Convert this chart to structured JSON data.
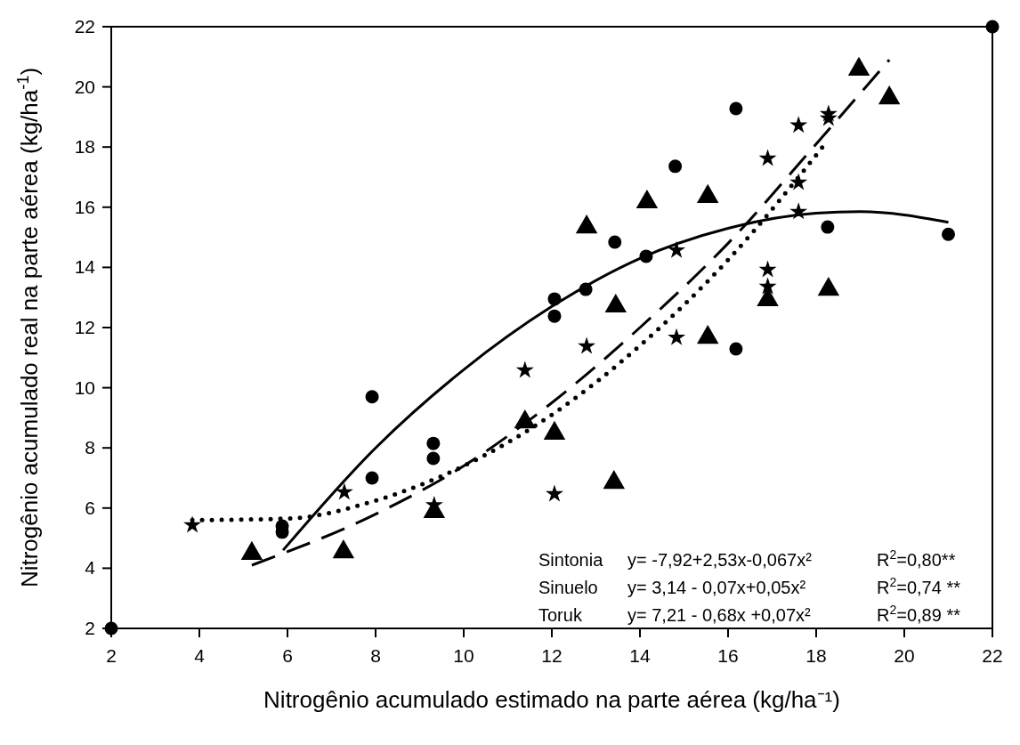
{
  "chart_data": {
    "type": "scatter",
    "xlabel": "Nitrogênio acumulado estimado na parte aérea (kg/ha⁻¹)",
    "ylabel": "Nitrogênio acumulado real na parte aérea (kg/ha$^{-1}$)",
    "xlim": [
      2,
      22
    ],
    "xticks": [
      2,
      4,
      6,
      8,
      10,
      12,
      14,
      16,
      18,
      20,
      22
    ],
    "ylim": [
      2,
      22
    ],
    "yticks": [
      2,
      4,
      6,
      8,
      10,
      12,
      14,
      16,
      18,
      20,
      22
    ],
    "grid": false,
    "series": [
      {
        "marker": "circle",
        "color": "#000000",
        "x": [
          2,
          5.88,
          5.88,
          7.92,
          7.92,
          9.31,
          9.31,
          12.06,
          12.06,
          12.77,
          13.43,
          14.14,
          14.8,
          16.18,
          16.18,
          18.26,
          21.0,
          22
        ],
        "values": [
          2,
          5.4,
          5.2,
          9.7,
          7.0,
          8.15,
          7.65,
          12.95,
          12.38,
          13.27,
          14.84,
          14.37,
          17.36,
          19.28,
          11.29,
          15.34,
          15.1,
          22
        ]
      },
      {
        "marker": "triangle",
        "color": "#000000",
        "x": [
          5.19,
          7.27,
          9.33,
          11.39,
          12.06,
          12.79,
          13.41,
          13.45,
          14.16,
          15.54,
          15.54,
          16.9,
          18.28,
          18.97,
          19.66
        ],
        "values": [
          4.49,
          4.54,
          5.88,
          8.86,
          8.48,
          15.34,
          6.85,
          12.71,
          16.17,
          16.35,
          11.67,
          12.92,
          13.27,
          20.58,
          19.63
        ]
      },
      {
        "marker": "star",
        "color": "#000000",
        "x": [
          3.84,
          7.29,
          9.33,
          11.39,
          12.06,
          12.79,
          14.83,
          14.83,
          16.9,
          16.9,
          16.9,
          17.6,
          17.6,
          17.6,
          18.28,
          18.28
        ],
        "values": [
          5.43,
          6.53,
          6.1,
          10.58,
          6.47,
          11.38,
          14.57,
          11.67,
          17.62,
          13.92,
          13.36,
          18.72,
          16.82,
          15.85,
          19.1,
          18.95
        ]
      },
      {
        "type": "line",
        "marker": "none",
        "line_style": "solid",
        "color": "#000000",
        "x": [
          5.9,
          8,
          10,
          12,
          14,
          16,
          18,
          19,
          21
        ],
        "values": [
          4.6,
          8.0,
          10.6,
          12.7,
          14.3,
          15.3,
          15.8,
          15.85,
          15.5
        ]
      },
      {
        "type": "line",
        "marker": "none",
        "line_style": "dashed",
        "color": "#000000",
        "x": [
          5.19,
          8,
          10,
          12,
          14,
          16,
          18,
          19.66
        ],
        "values": [
          4.1,
          5.8,
          7.4,
          9.5,
          12.0,
          14.8,
          18.1,
          20.9
        ]
      },
      {
        "type": "line",
        "marker": "none",
        "line_style": "dotted",
        "color": "#000000",
        "x": [
          3.84,
          6,
          8,
          10,
          12,
          14,
          16,
          18.2
        ],
        "values": [
          5.6,
          5.65,
          6.25,
          7.4,
          9.1,
          11.4,
          14.25,
          18.1
        ]
      }
    ],
    "annotations": [
      "Sintonia",
      "y= -7,92+2,53x-0,067x²",
      "R$^{2}$=0,80**",
      "Sinuelo",
      "y= 3,14 - 0,07x+0,05x²",
      "R$^{2}$=0,74 **",
      "Toruk",
      "y= 7,21 - 0,68x +0,07x²",
      "R$^{2}$=0,89 **"
    ]
  }
}
